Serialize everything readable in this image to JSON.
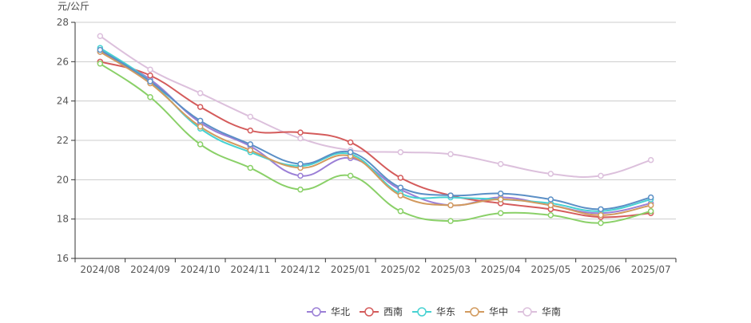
{
  "chart_data": {
    "type": "line",
    "unit_label": "元/公斤",
    "categories": [
      "2024/08",
      "2024/09",
      "2024/10",
      "2024/11",
      "2024/12",
      "2025/01",
      "2025/02",
      "2025/03",
      "2025/04",
      "2025/05",
      "2025/06",
      "2025/07"
    ],
    "ylim": [
      16,
      28
    ],
    "yticks": [
      16,
      18,
      20,
      22,
      24,
      26,
      28
    ],
    "grid": true,
    "legend_position": "bottom",
    "series": [
      {
        "name": "华北",
        "color": "#9b7fd6",
        "values": [
          26.5,
          25.1,
          22.9,
          21.7,
          20.2,
          21.1,
          19.5,
          18.7,
          19.1,
          18.7,
          18.3,
          18.8
        ]
      },
      {
        "name": "西南",
        "color": "#d45b5b",
        "values": [
          26.0,
          25.3,
          23.7,
          22.5,
          22.4,
          21.9,
          20.1,
          19.2,
          18.8,
          18.5,
          18.1,
          18.3
        ]
      },
      {
        "name": "华东",
        "color": "#47d2d2",
        "values": [
          26.7,
          25.0,
          22.6,
          21.4,
          20.7,
          21.3,
          19.3,
          19.1,
          19.0,
          18.8,
          18.4,
          19.0
        ]
      },
      {
        "name": "华中",
        "color": "#d29a5e",
        "values": [
          26.5,
          24.9,
          22.7,
          21.5,
          20.6,
          21.2,
          19.2,
          18.7,
          19.0,
          18.7,
          18.2,
          18.7
        ]
      },
      {
        "name": "华南",
        "color": "#dcc0dc",
        "values": [
          27.3,
          25.6,
          24.4,
          23.2,
          22.1,
          21.5,
          21.4,
          21.3,
          20.8,
          20.3,
          20.2,
          21.0
        ]
      },
      {
        "name": "",
        "color": "#5b8fc6",
        "values": [
          26.6,
          25.0,
          23.0,
          21.8,
          20.8,
          21.4,
          19.6,
          19.2,
          19.3,
          19.0,
          18.5,
          19.1
        ]
      },
      {
        "name": "",
        "color": "#8ad068",
        "values": [
          25.9,
          24.2,
          21.8,
          20.6,
          19.5,
          20.2,
          18.4,
          17.9,
          18.3,
          18.2,
          17.8,
          18.4
        ]
      }
    ]
  }
}
